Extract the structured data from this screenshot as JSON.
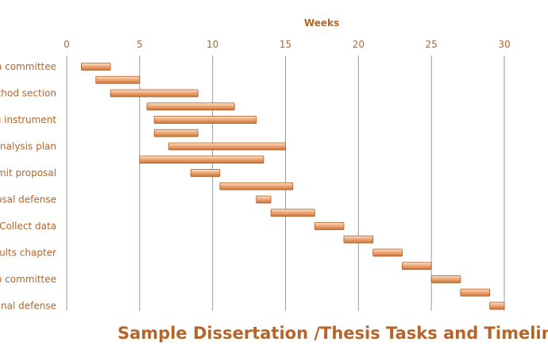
{
  "chart_data": {
    "type": "bar",
    "orientation": "horizontal-gantt",
    "title": "Sample Dissertation /Thesis Tasks and Timeline",
    "xlabel": "Weeks",
    "xlim": [
      0,
      30
    ],
    "xticks": [
      0,
      5,
      10,
      15,
      20,
      25,
      30
    ],
    "x_axis_position": "top",
    "grid": "vertical",
    "colors": {
      "bar_light": "#fde3cc",
      "bar_mid": "#f0a878",
      "bar_dark": "#c8753a",
      "text": "#b5652a"
    },
    "tasks": [
      {
        "label": "m committee",
        "start": 1.0,
        "end": 3.0
      },
      {
        "label": "",
        "start": 2.0,
        "end": 5.0
      },
      {
        "label": "ethod section",
        "start": 3.0,
        "end": 9.0
      },
      {
        "label": "",
        "start": 5.5,
        "end": 11.5
      },
      {
        "label": "n instrument",
        "start": 6.0,
        "end": 13.0
      },
      {
        "label": "",
        "start": 6.0,
        "end": 9.0
      },
      {
        "label": "analysis plan",
        "start": 7.0,
        "end": 15.0
      },
      {
        "label": "",
        "start": 5.0,
        "end": 13.5
      },
      {
        "label": "mit proposal",
        "start": 8.5,
        "end": 10.5
      },
      {
        "label": "",
        "start": 10.5,
        "end": 15.5
      },
      {
        "label": "osal defense",
        "start": 13.0,
        "end": 14.0
      },
      {
        "label": "",
        "start": 14.0,
        "end": 17.0
      },
      {
        "label": "Collect data",
        "start": 17.0,
        "end": 19.0
      },
      {
        "label": "",
        "start": 19.0,
        "end": 21.0
      },
      {
        "label": "sults chapter",
        "start": 21.0,
        "end": 23.0
      },
      {
        "label": "",
        "start": 23.0,
        "end": 25.0
      },
      {
        "label": "o committee",
        "start": 25.0,
        "end": 27.0
      },
      {
        "label": "",
        "start": 27.0,
        "end": 29.0
      },
      {
        "label": "Final defense",
        "start": 29.0,
        "end": 30.0
      }
    ]
  }
}
